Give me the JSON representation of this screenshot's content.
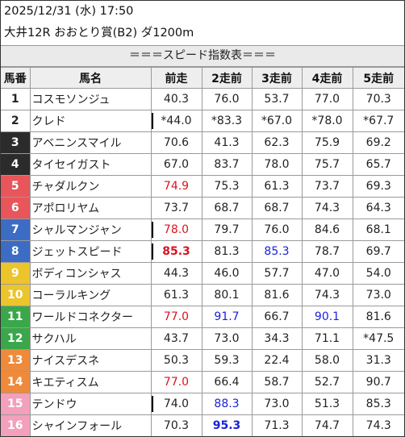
{
  "header": {
    "line1": "2025/12/31 (水) 17:50",
    "line2": "大井12R おおとり賞(B2) ダ1200m"
  },
  "table": {
    "title": "＝＝＝スピード指数表＝＝＝",
    "columns": [
      "馬番",
      "馬名",
      "前走",
      "2走前",
      "3走前",
      "4走前",
      "5走前"
    ],
    "rows": [
      {
        "num": "1",
        "name": "コスモソンジュ",
        "bg": "#ffffff",
        "fg": "#222222",
        "v": [
          "40.3",
          "76.0",
          "53.7",
          "77.0",
          "70.3"
        ],
        "style": [
          "",
          "",
          "",
          "",
          ""
        ],
        "mark": [
          false,
          false,
          false,
          false,
          false
        ]
      },
      {
        "num": "2",
        "name": "クレド",
        "bg": "#ffffff",
        "fg": "#222222",
        "v": [
          "*44.0",
          "*83.3",
          "*67.0",
          "*78.0",
          "*67.7"
        ],
        "style": [
          "",
          "",
          "",
          "",
          ""
        ],
        "mark": [
          true,
          false,
          false,
          false,
          false
        ]
      },
      {
        "num": "3",
        "name": "アベニンスマイル",
        "bg": "#2b2b2b",
        "fg": "#ffffff",
        "v": [
          "70.6",
          "41.3",
          "62.3",
          "75.9",
          "69.2"
        ],
        "style": [
          "",
          "",
          "",
          "",
          ""
        ],
        "mark": [
          false,
          false,
          false,
          false,
          false
        ]
      },
      {
        "num": "4",
        "name": "タイセイガスト",
        "bg": "#2b2b2b",
        "fg": "#ffffff",
        "v": [
          "67.0",
          "83.7",
          "78.0",
          "75.7",
          "65.7"
        ],
        "style": [
          "",
          "",
          "",
          "",
          ""
        ],
        "mark": [
          false,
          false,
          false,
          false,
          false
        ]
      },
      {
        "num": "5",
        "name": "チャダルクン",
        "bg": "#e8555a",
        "fg": "#ffffff",
        "v": [
          "74.9",
          "75.3",
          "61.3",
          "73.7",
          "69.3"
        ],
        "style": [
          "red",
          "",
          "",
          "",
          ""
        ],
        "mark": [
          false,
          false,
          false,
          false,
          false
        ]
      },
      {
        "num": "6",
        "name": "アポロリヤム",
        "bg": "#e8555a",
        "fg": "#ffffff",
        "v": [
          "73.7",
          "68.7",
          "68.7",
          "74.3",
          "64.3"
        ],
        "style": [
          "",
          "",
          "",
          "",
          ""
        ],
        "mark": [
          false,
          false,
          false,
          false,
          false
        ]
      },
      {
        "num": "7",
        "name": "シャルマンジャン",
        "bg": "#3c6cc4",
        "fg": "#ffffff",
        "v": [
          "78.0",
          "79.7",
          "76.0",
          "84.6",
          "68.1"
        ],
        "style": [
          "red",
          "",
          "",
          "",
          ""
        ],
        "mark": [
          true,
          false,
          false,
          false,
          false
        ]
      },
      {
        "num": "8",
        "name": "ジェットスピード",
        "bg": "#3c6cc4",
        "fg": "#ffffff",
        "v": [
          "85.3",
          "81.3",
          "85.3",
          "78.7",
          "69.7"
        ],
        "style": [
          "red b",
          "",
          "blue",
          "",
          ""
        ],
        "mark": [
          true,
          false,
          false,
          false,
          false
        ]
      },
      {
        "num": "9",
        "name": "ボディコンシャス",
        "bg": "#ecc42c",
        "fg": "#ffffff",
        "v": [
          "44.3",
          "46.0",
          "57.7",
          "47.0",
          "54.0"
        ],
        "style": [
          "",
          "",
          "",
          "",
          ""
        ],
        "mark": [
          false,
          false,
          false,
          false,
          false
        ]
      },
      {
        "num": "10",
        "name": "コーラルキング",
        "bg": "#ecc42c",
        "fg": "#ffffff",
        "v": [
          "61.3",
          "80.1",
          "81.6",
          "74.3",
          "73.0"
        ],
        "style": [
          "",
          "",
          "",
          "",
          ""
        ],
        "mark": [
          false,
          false,
          false,
          false,
          false
        ]
      },
      {
        "num": "11",
        "name": "ワールドコネクター",
        "bg": "#3aa84a",
        "fg": "#ffffff",
        "v": [
          "77.0",
          "91.7",
          "66.7",
          "90.1",
          "81.6"
        ],
        "style": [
          "red",
          "blue",
          "",
          "blue",
          ""
        ],
        "mark": [
          false,
          false,
          false,
          false,
          false
        ]
      },
      {
        "num": "12",
        "name": "サクハル",
        "bg": "#3aa84a",
        "fg": "#ffffff",
        "v": [
          "43.7",
          "73.0",
          "34.3",
          "71.1",
          "*47.5"
        ],
        "style": [
          "",
          "",
          "",
          "",
          ""
        ],
        "mark": [
          false,
          false,
          false,
          false,
          false
        ]
      },
      {
        "num": "13",
        "name": "ナイスデスネ",
        "bg": "#ee8a3a",
        "fg": "#ffffff",
        "v": [
          "50.3",
          "59.3",
          "22.4",
          "58.0",
          "31.3"
        ],
        "style": [
          "",
          "",
          "",
          "",
          ""
        ],
        "mark": [
          false,
          false,
          false,
          false,
          false
        ]
      },
      {
        "num": "14",
        "name": "キエティスム",
        "bg": "#ee8a3a",
        "fg": "#ffffff",
        "v": [
          "77.0",
          "66.4",
          "58.7",
          "52.7",
          "90.7"
        ],
        "style": [
          "red",
          "",
          "",
          "",
          ""
        ],
        "mark": [
          false,
          false,
          false,
          false,
          false
        ]
      },
      {
        "num": "15",
        "name": "テンドウ",
        "bg": "#f2a0bc",
        "fg": "#ffffff",
        "v": [
          "74.0",
          "88.3",
          "73.0",
          "51.3",
          "85.3"
        ],
        "style": [
          "",
          "blue",
          "",
          "",
          ""
        ],
        "mark": [
          true,
          false,
          false,
          false,
          false
        ]
      },
      {
        "num": "16",
        "name": "シャインフォール",
        "bg": "#f2a0bc",
        "fg": "#ffffff",
        "v": [
          "70.3",
          "95.3",
          "71.3",
          "74.7",
          "74.3"
        ],
        "style": [
          "",
          "blue b",
          "",
          "",
          ""
        ],
        "mark": [
          false,
          false,
          false,
          false,
          false
        ]
      }
    ]
  }
}
